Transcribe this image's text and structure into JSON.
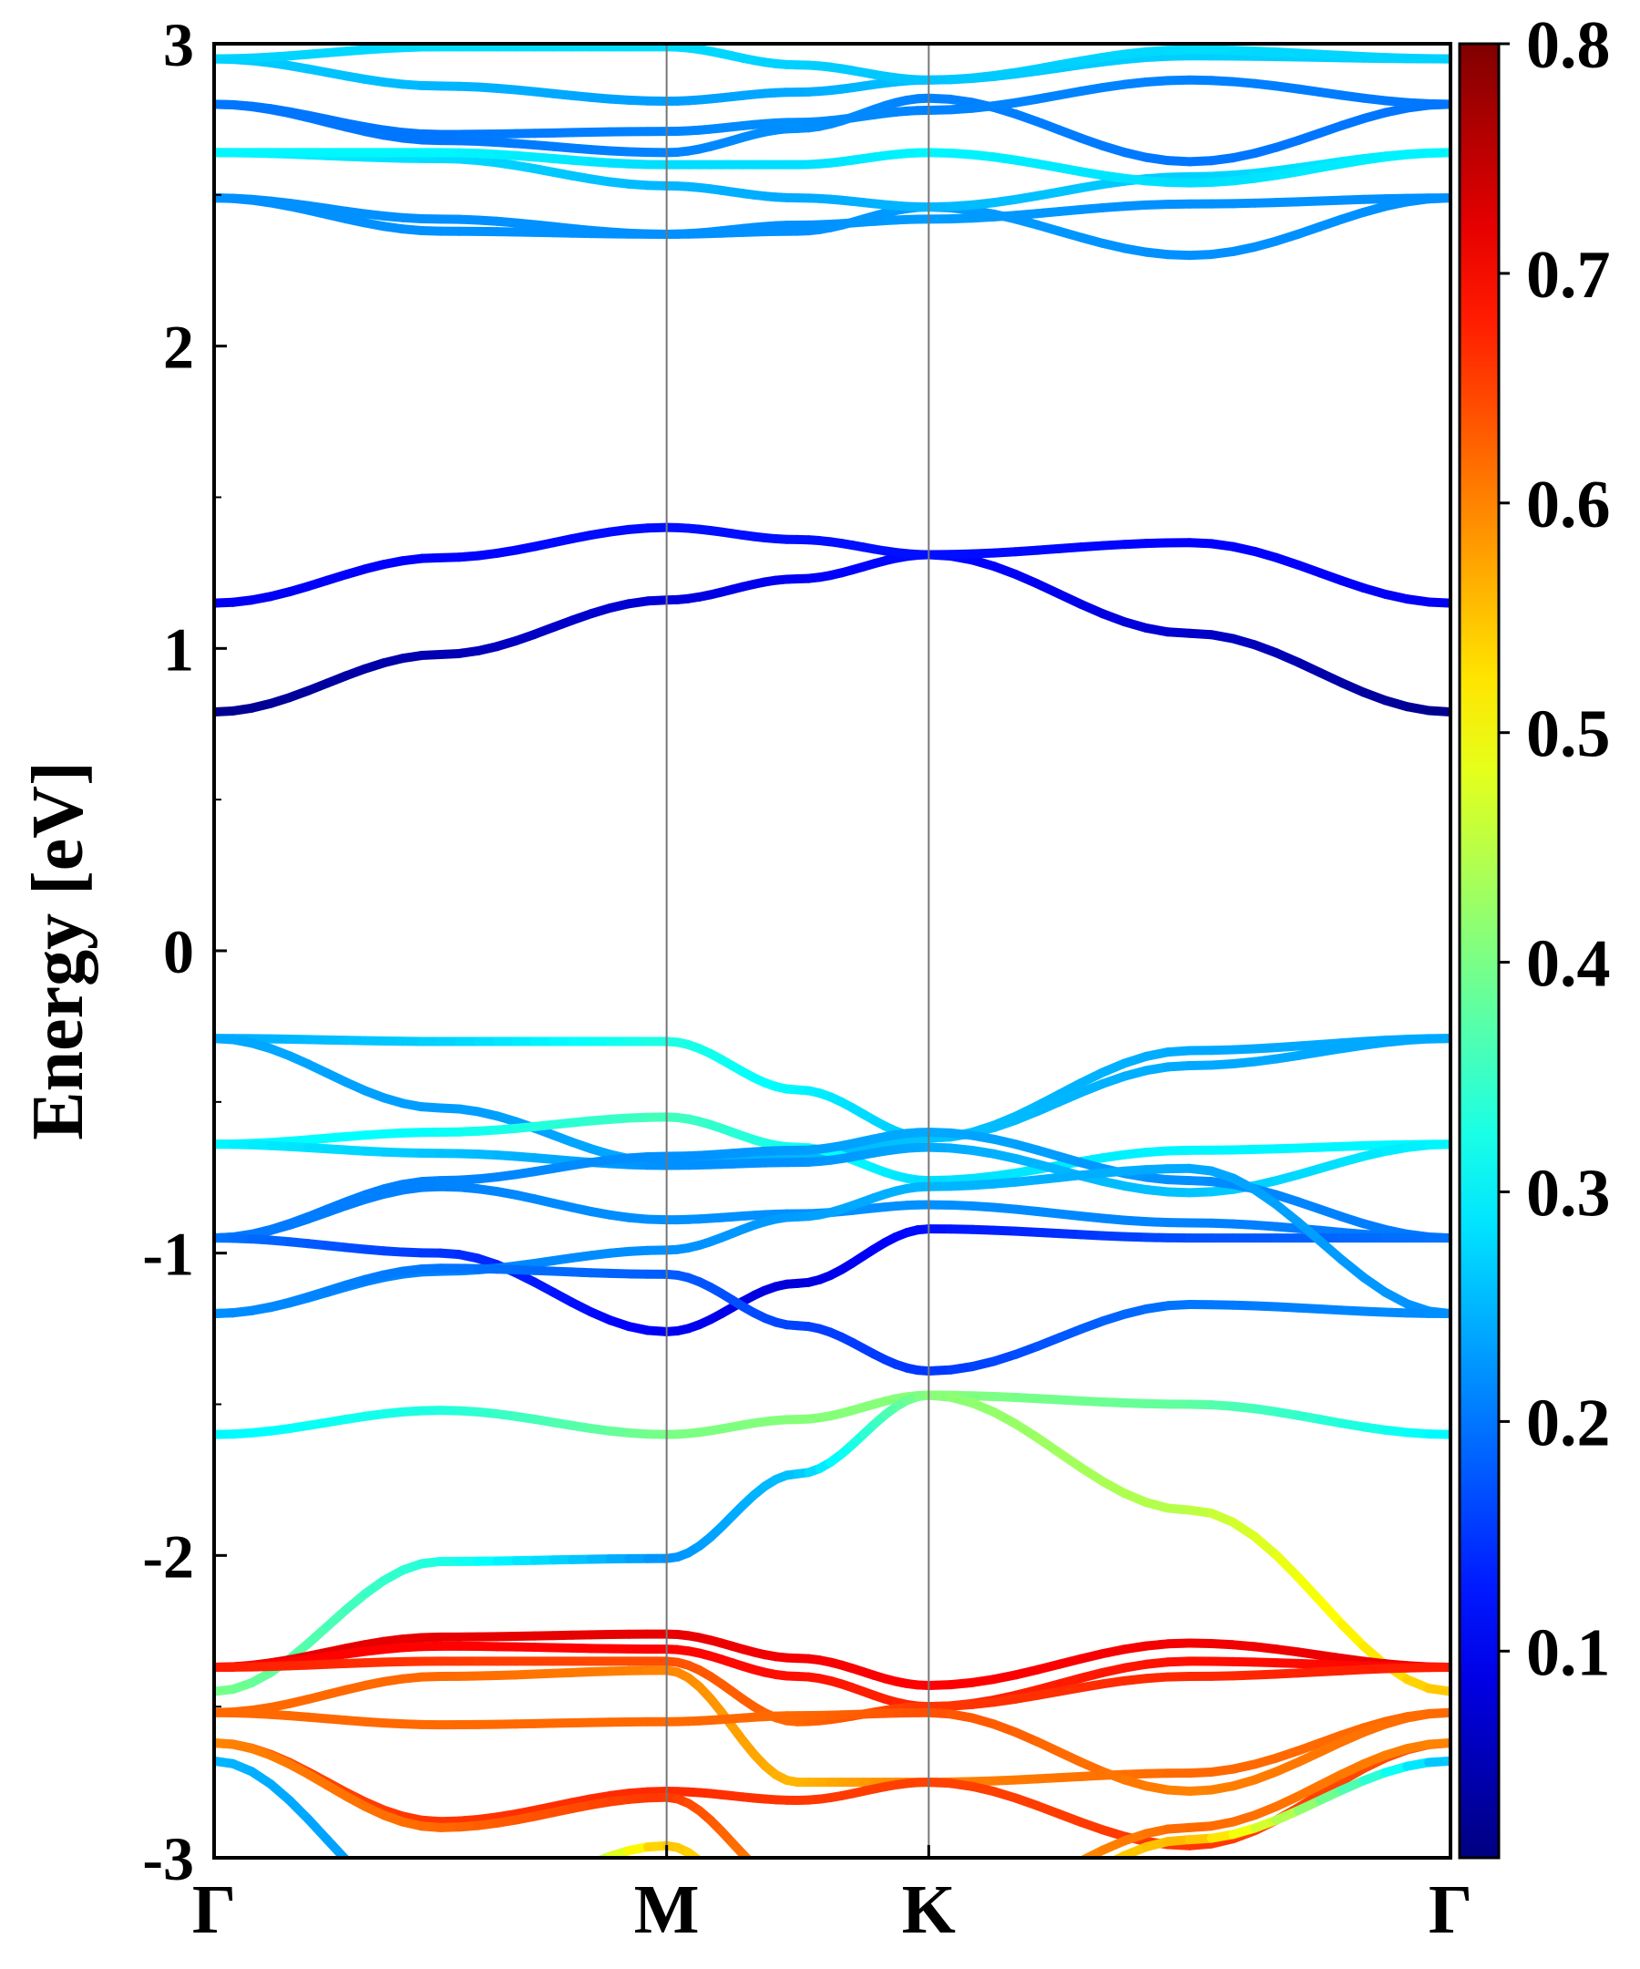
{
  "chart_data": {
    "type": "line",
    "title": "",
    "xlabel": "",
    "ylabel": "Energy [eV]",
    "ylim": [
      -3,
      3
    ],
    "y_ticks": [
      "-3",
      "-2",
      "-1",
      "0",
      "1",
      "2",
      "3"
    ],
    "y_tick_values": [
      -3,
      -2,
      -1,
      0,
      1,
      2,
      3
    ],
    "k_points": [
      {
        "label": "Γ",
        "x": 0.0
      },
      {
        "label": "M",
        "x": 0.366
      },
      {
        "label": "K",
        "x": 0.578
      },
      {
        "label": "Γ",
        "x": 1.0
      }
    ],
    "grid": "vertical lines at high-symmetry points",
    "colorbar": {
      "colormap": "jet",
      "range": [
        0.01,
        0.8
      ],
      "tick_values": [
        0.1,
        0.2,
        0.3,
        0.4,
        0.5,
        0.6,
        0.7,
        0.8
      ],
      "tick_labels": [
        "0.1",
        "0.2",
        "0.3",
        "0.4",
        "0.5",
        "0.6",
        "0.7",
        "0.8"
      ]
    },
    "series": [
      {
        "x": [
          0,
          0.183,
          0.366,
          0.472,
          0.578,
          0.789,
          1
        ],
        "y": [
          0.79,
          0.98,
          1.16,
          1.23,
          1.31,
          1.05,
          0.79
        ],
        "c": [
          0.02,
          0.05,
          0.08,
          0.1,
          0.12,
          0.07,
          0.02
        ]
      },
      {
        "x": [
          0,
          0.183,
          0.366,
          0.472,
          0.578,
          0.789,
          1
        ],
        "y": [
          1.15,
          1.3,
          1.4,
          1.36,
          1.31,
          1.35,
          1.15
        ],
        "c": [
          0.1,
          0.11,
          0.12,
          0.12,
          0.12,
          0.11,
          0.1
        ]
      },
      {
        "x": [
          0,
          0.183,
          0.366,
          0.472,
          0.578,
          0.789,
          1
        ],
        "y": [
          2.49,
          2.38,
          2.37,
          2.4,
          2.42,
          2.47,
          2.49
        ],
        "c": [
          0.22,
          0.22,
          0.22,
          0.22,
          0.23,
          0.22,
          0.22
        ]
      },
      {
        "x": [
          0,
          0.183,
          0.366,
          0.472,
          0.578,
          0.789,
          1
        ],
        "y": [
          2.49,
          2.42,
          2.37,
          2.38,
          2.46,
          2.3,
          2.49
        ],
        "c": [
          0.22,
          0.22,
          0.22,
          0.22,
          0.23,
          0.22,
          0.22
        ]
      },
      {
        "x": [
          0,
          0.183,
          0.366,
          0.472,
          0.578,
          0.789,
          1
        ],
        "y": [
          2.64,
          2.62,
          2.53,
          2.49,
          2.46,
          2.56,
          2.64
        ],
        "c": [
          0.3,
          0.28,
          0.25,
          0.24,
          0.25,
          0.27,
          0.3
        ]
      },
      {
        "x": [
          0,
          0.183,
          0.366,
          0.472,
          0.578,
          0.789,
          1
        ],
        "y": [
          2.64,
          2.64,
          2.6,
          2.6,
          2.64,
          2.54,
          2.64
        ],
        "c": [
          0.3,
          0.3,
          0.28,
          0.28,
          0.3,
          0.28,
          0.3
        ]
      },
      {
        "x": [
          0,
          0.183,
          0.366,
          0.472,
          0.578,
          0.789,
          1
        ],
        "y": [
          2.8,
          2.68,
          2.64,
          2.72,
          2.82,
          2.61,
          2.8
        ],
        "c": [
          0.2,
          0.2,
          0.21,
          0.22,
          0.21,
          0.2,
          0.2
        ]
      },
      {
        "x": [
          0,
          0.183,
          0.366,
          0.472,
          0.578,
          0.789,
          1
        ],
        "y": [
          2.8,
          2.7,
          2.71,
          2.74,
          2.78,
          2.88,
          2.8
        ],
        "c": [
          0.2,
          0.2,
          0.21,
          0.22,
          0.21,
          0.21,
          0.2
        ]
      },
      {
        "x": [
          0,
          0.183,
          0.366,
          0.472,
          0.578,
          0.789,
          1
        ],
        "y": [
          2.95,
          2.86,
          2.81,
          2.84,
          2.88,
          2.96,
          2.95
        ],
        "c": [
          0.27,
          0.25,
          0.23,
          0.24,
          0.26,
          0.27,
          0.27
        ]
      },
      {
        "x": [
          0,
          0.183,
          0.366,
          0.472,
          0.578,
          0.789,
          1
        ],
        "y": [
          2.95,
          2.99,
          2.99,
          2.93,
          2.88,
          2.98,
          2.95
        ],
        "c": [
          0.27,
          0.28,
          0.28,
          0.27,
          0.26,
          0.28,
          0.27
        ]
      },
      {
        "x": [
          0,
          0.183,
          0.366,
          0.472,
          0.578,
          0.789,
          1
        ],
        "y": [
          -0.29,
          -0.3,
          -0.3,
          -0.46,
          -0.62,
          -0.38,
          -0.29
        ],
        "c": [
          0.24,
          0.27,
          0.33,
          0.3,
          0.26,
          0.24,
          0.24
        ]
      },
      {
        "x": [
          0,
          0.183,
          0.366,
          0.472,
          0.578,
          0.789,
          1
        ],
        "y": [
          -0.29,
          -0.52,
          -0.7,
          -0.68,
          -0.62,
          -0.33,
          -0.29
        ],
        "c": [
          0.24,
          0.23,
          0.24,
          0.25,
          0.26,
          0.24,
          0.24
        ]
      },
      {
        "x": [
          0,
          0.183,
          0.366,
          0.472,
          0.578,
          0.789,
          1
        ],
        "y": [
          -0.64,
          -0.6,
          -0.55,
          -0.65,
          -0.76,
          -0.66,
          -0.64
        ],
        "c": [
          0.3,
          0.31,
          0.36,
          0.32,
          0.28,
          0.3,
          0.3
        ]
      },
      {
        "x": [
          0,
          0.183,
          0.366,
          0.472,
          0.578,
          0.789,
          1
        ],
        "y": [
          -0.64,
          -0.67,
          -0.71,
          -0.7,
          -0.65,
          -0.8,
          -0.64
        ],
        "c": [
          0.3,
          0.26,
          0.22,
          0.22,
          0.24,
          0.26,
          0.3
        ]
      },
      {
        "x": [
          0,
          0.183,
          0.366,
          0.472,
          0.578,
          0.789,
          1
        ],
        "y": [
          -0.95,
          -0.76,
          -0.68,
          -0.66,
          -0.6,
          -0.76,
          -0.95
        ],
        "c": [
          0.2,
          0.21,
          0.22,
          0.23,
          0.24,
          0.22,
          0.2
        ]
      },
      {
        "x": [
          0,
          0.183,
          0.366,
          0.472,
          0.578,
          0.789,
          1
        ],
        "y": [
          -0.95,
          -0.78,
          -0.89,
          -0.87,
          -0.84,
          -0.9,
          -0.95
        ],
        "c": [
          0.2,
          0.21,
          0.22,
          0.22,
          0.22,
          0.21,
          0.2
        ]
      },
      {
        "x": [
          0,
          0.183,
          0.366,
          0.472,
          0.578,
          0.789,
          1
        ],
        "y": [
          -0.95,
          -1.0,
          -1.26,
          -1.1,
          -0.92,
          -0.95,
          -0.95
        ],
        "c": [
          0.2,
          0.15,
          0.1,
          0.08,
          0.12,
          0.17,
          0.2
        ]
      },
      {
        "x": [
          0,
          0.183,
          0.366,
          0.472,
          0.578,
          0.789,
          1
        ],
        "y": [
          -1.2,
          -1.06,
          -0.99,
          -0.88,
          -0.78,
          -0.72,
          -1.2
        ],
        "c": [
          0.22,
          0.21,
          0.22,
          0.23,
          0.25,
          0.24,
          0.22
        ]
      },
      {
        "x": [
          0,
          0.183,
          0.366,
          0.472,
          0.578,
          0.789,
          1
        ],
        "y": [
          -1.2,
          -1.05,
          -1.07,
          -1.24,
          -1.39,
          -1.17,
          -1.2
        ],
        "c": [
          0.22,
          0.2,
          0.18,
          0.16,
          0.15,
          0.2,
          0.22
        ]
      },
      {
        "x": [
          0,
          0.183,
          0.366,
          0.472,
          0.578,
          0.789,
          1
        ],
        "y": [
          -1.6,
          -1.52,
          -1.6,
          -1.55,
          -1.47,
          -1.5,
          -1.6
        ],
        "c": [
          0.3,
          0.33,
          0.4,
          0.41,
          0.41,
          0.38,
          0.3
        ]
      },
      {
        "x": [
          0,
          0.183,
          0.366,
          0.472,
          0.578,
          0.789,
          1
        ],
        "y": [
          -2.45,
          -2.02,
          -2.01,
          -1.73,
          -1.47,
          -1.85,
          -2.45
        ],
        "c": [
          0.4,
          0.33,
          0.22,
          0.26,
          0.41,
          0.45,
          0.55
        ]
      },
      {
        "x": [
          0,
          0.183,
          0.366,
          0.472,
          0.578,
          0.789,
          1
        ],
        "y": [
          -2.37,
          -2.27,
          -2.26,
          -2.34,
          -2.43,
          -2.29,
          -2.37
        ],
        "c": [
          0.72,
          0.72,
          0.72,
          0.71,
          0.7,
          0.71,
          0.72
        ]
      },
      {
        "x": [
          0,
          0.183,
          0.366,
          0.472,
          0.578,
          0.789,
          1
        ],
        "y": [
          -2.37,
          -2.3,
          -2.31,
          -2.4,
          -2.5,
          -2.35,
          -2.37
        ],
        "c": [
          0.7,
          0.7,
          0.7,
          0.69,
          0.67,
          0.69,
          0.7
        ]
      },
      {
        "x": [
          0,
          0.183,
          0.366,
          0.472,
          0.578,
          0.789,
          1
        ],
        "y": [
          -2.37,
          -2.35,
          -2.35,
          -2.55,
          -2.5,
          -2.4,
          -2.37
        ],
        "c": [
          0.68,
          0.66,
          0.64,
          0.62,
          0.66,
          0.67,
          0.68
        ]
      },
      {
        "x": [
          0,
          0.183,
          0.366,
          0.472,
          0.578,
          0.789,
          1
        ],
        "y": [
          -2.52,
          -2.4,
          -2.38,
          -2.75,
          -2.75,
          -2.72,
          -2.52
        ],
        "c": [
          0.62,
          0.62,
          0.6,
          0.56,
          0.6,
          0.62,
          0.62
        ]
      },
      {
        "x": [
          0,
          0.183,
          0.366,
          0.472,
          0.578,
          0.789,
          1
        ],
        "y": [
          -2.52,
          -2.56,
          -2.55,
          -2.53,
          -2.52,
          -2.78,
          -2.52
        ],
        "c": [
          0.62,
          0.62,
          0.62,
          0.62,
          0.64,
          0.6,
          0.62
        ]
      },
      {
        "x": [
          0,
          0.183,
          0.366,
          0.472,
          0.578,
          0.789,
          1
        ],
        "y": [
          -2.62,
          -2.88,
          -2.78,
          -2.81,
          -2.75,
          -2.96,
          -2.62
        ],
        "c": [
          0.64,
          0.66,
          0.67,
          0.66,
          0.65,
          0.66,
          0.64
        ]
      },
      {
        "x": [
          0,
          0.183,
          0.366,
          0.472,
          0.578,
          0.789,
          1
        ],
        "y": [
          -2.62,
          -2.9,
          -2.8,
          -3.1,
          -3.2,
          -2.9,
          -2.62
        ],
        "c": [
          0.6,
          0.62,
          0.66,
          0.58,
          0.56,
          0.62,
          0.6
        ]
      },
      {
        "x": [
          0,
          0.183,
          0.366,
          0.472,
          0.578,
          0.789,
          1
        ],
        "y": [
          -2.68,
          -3.2,
          -2.96,
          -3.3,
          -3.3,
          -2.94,
          -2.68
        ],
        "c": [
          0.25,
          0.22,
          0.55,
          0.5,
          0.5,
          0.56,
          0.25
        ]
      }
    ]
  }
}
